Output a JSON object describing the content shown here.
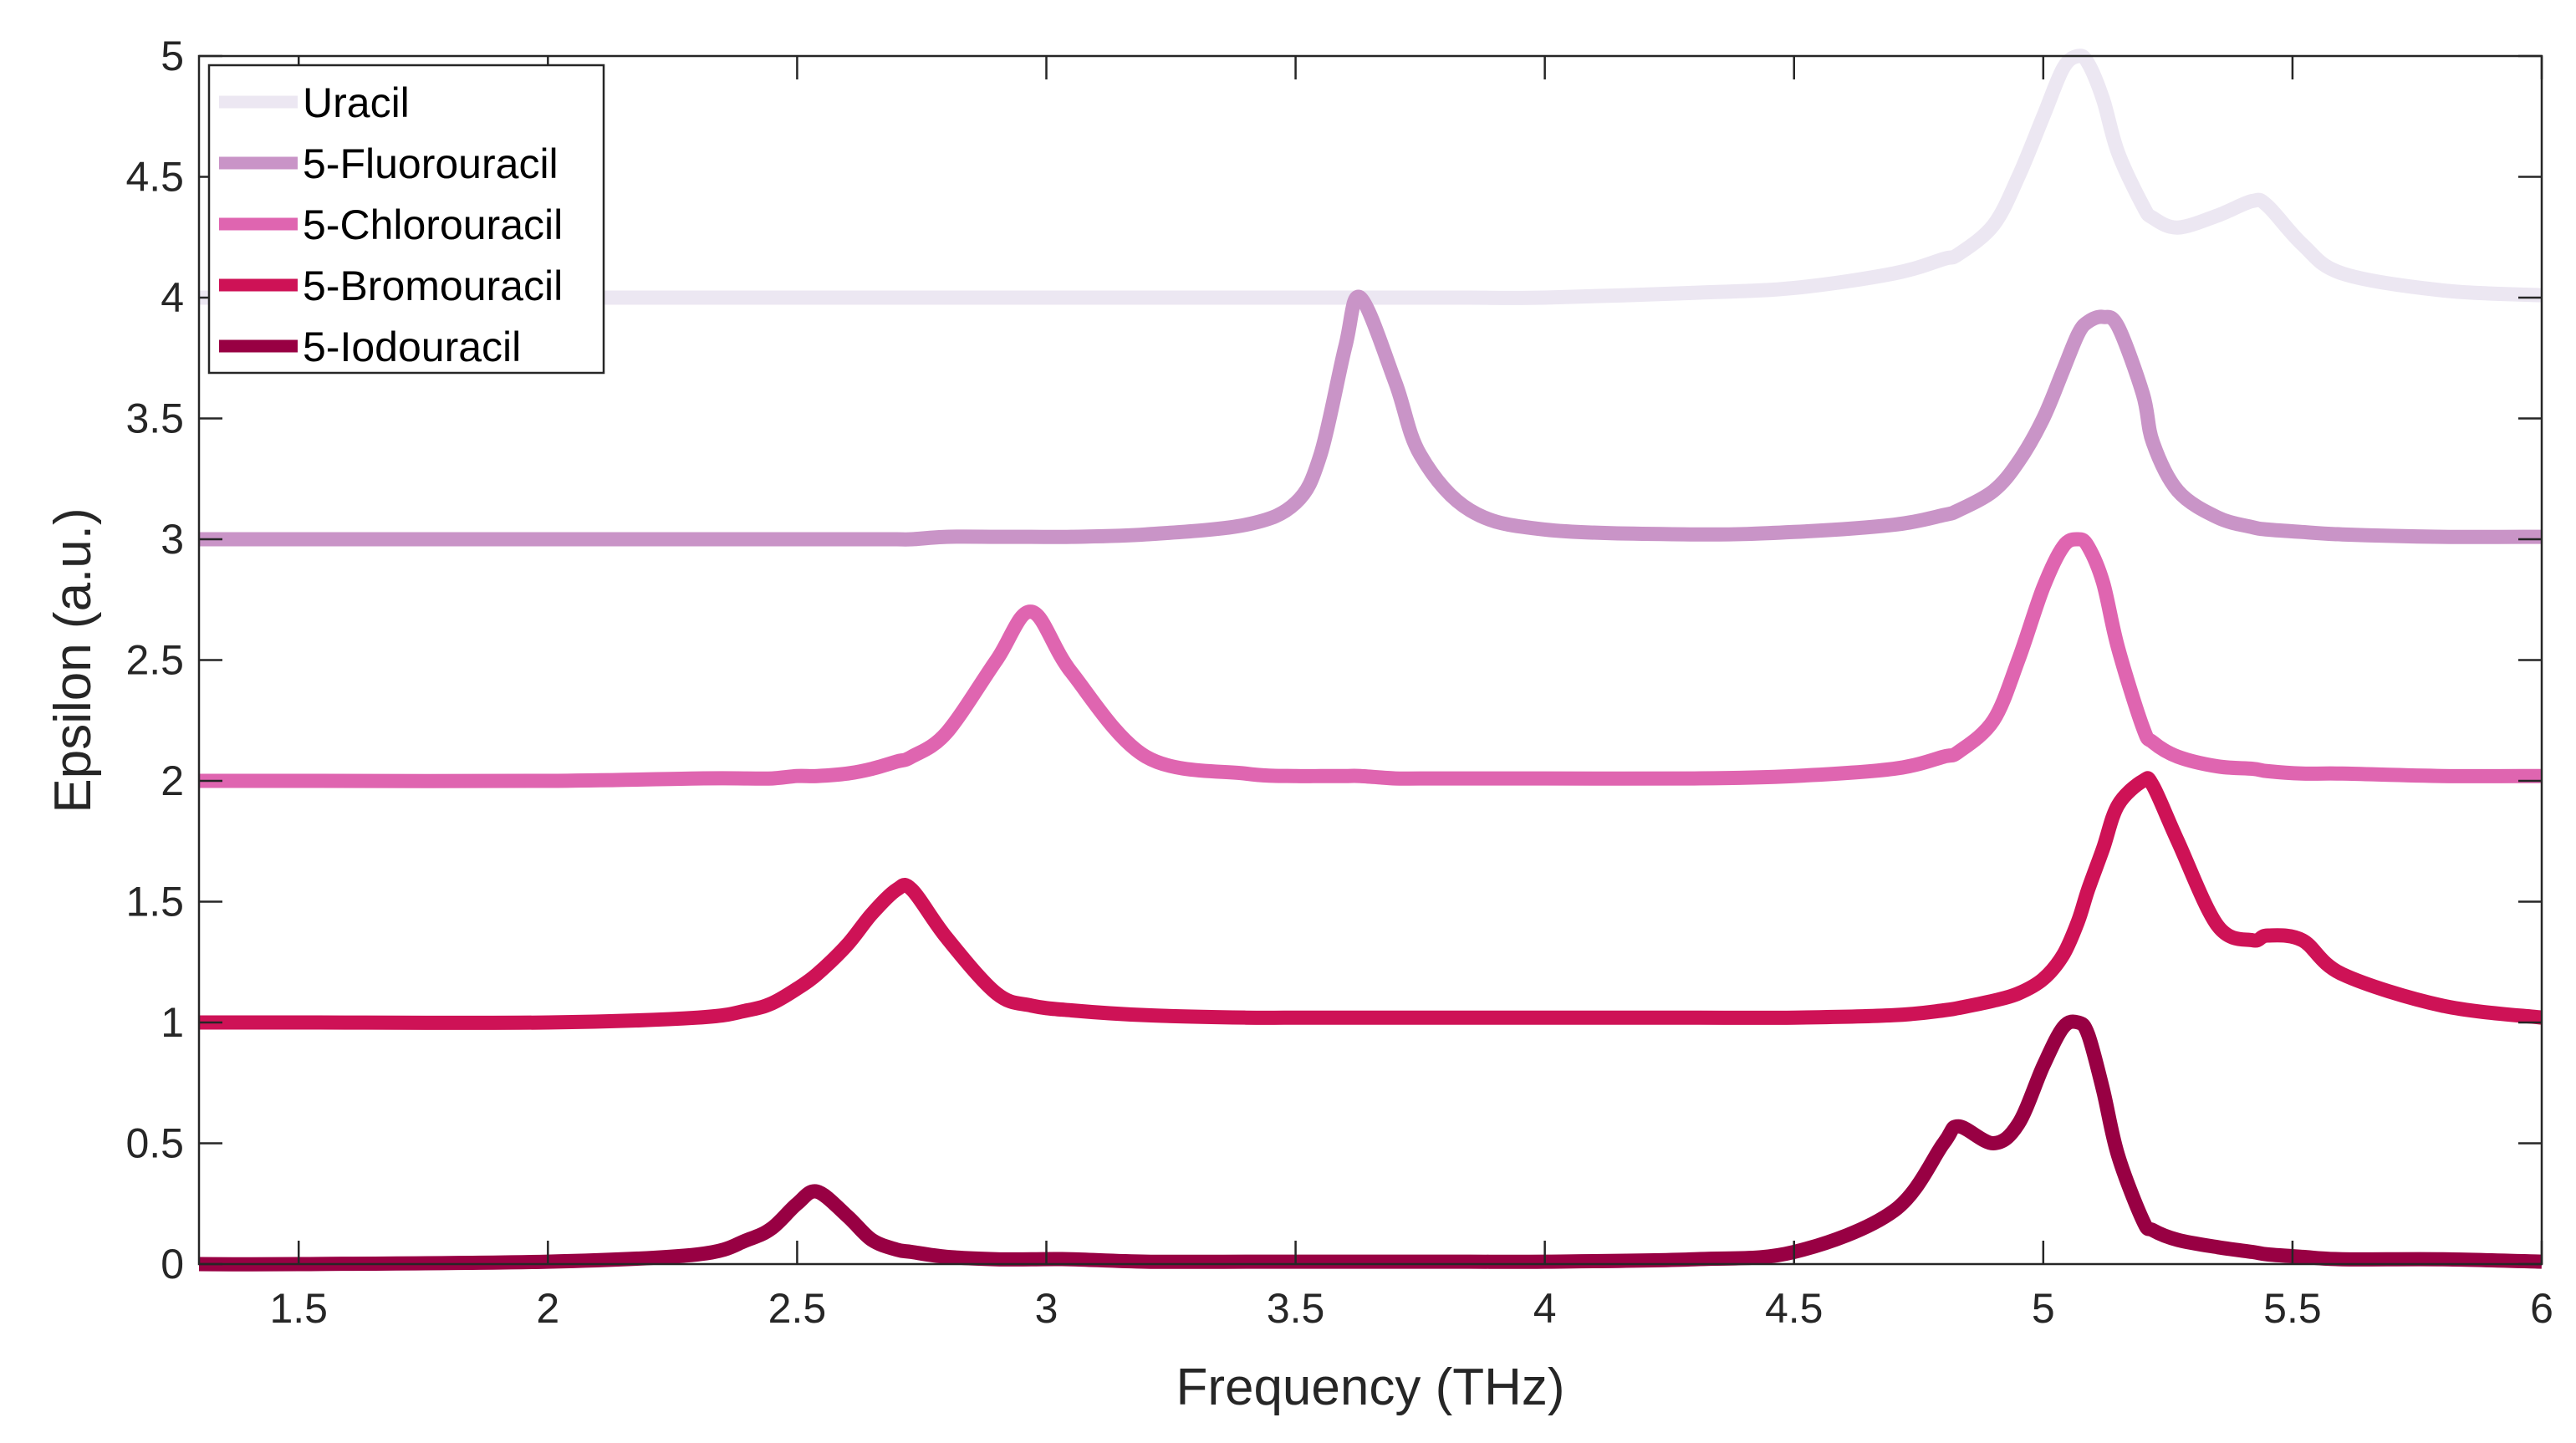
{
  "chart_data": {
    "type": "line",
    "title": "",
    "xlabel": "Frequency (THz)",
    "ylabel": "Epsilon (a.u.)",
    "xlim": [
      1.3,
      6
    ],
    "ylim": [
      0,
      5
    ],
    "grid": false,
    "legend_position": "top-left",
    "x_ticks": [
      "1.5",
      "2",
      "2.5",
      "3",
      "3.5",
      "4",
      "4.5",
      "5",
      "5.5",
      "6"
    ],
    "y_ticks": [
      "0",
      "0.5",
      "1",
      "1.5",
      "2",
      "2.5",
      "3",
      "3.5",
      "4",
      "4.5",
      "5"
    ],
    "x": [
      1.3,
      1.5,
      2.0,
      2.3,
      2.4,
      2.45,
      2.5,
      2.54,
      2.6,
      2.65,
      2.7,
      2.73,
      2.8,
      2.9,
      2.97,
      3.05,
      3.2,
      3.4,
      3.5,
      3.55,
      3.6,
      3.63,
      3.7,
      3.75,
      3.85,
      4.0,
      4.3,
      4.5,
      4.7,
      4.8,
      4.83,
      4.9,
      4.95,
      5.0,
      5.04,
      5.07,
      5.09,
      5.12,
      5.15,
      5.2,
      5.22,
      5.27,
      5.35,
      5.42,
      5.45,
      5.52,
      5.6,
      5.8,
      6.0
    ],
    "series": [
      {
        "name": "Uracil",
        "color": "#ECE7F2",
        "values": [
          4.0,
          4.0,
          4.0,
          4.0,
          4.0,
          4.0,
          4.0,
          4.0,
          4.0,
          4.0,
          4.0,
          4.0,
          4.0,
          4.0,
          4.0,
          4.0,
          4.0,
          4.0,
          4.0,
          4.0,
          4.0,
          4.0,
          4.0,
          4.0,
          4.0,
          4.0,
          4.02,
          4.04,
          4.1,
          4.16,
          4.18,
          4.3,
          4.5,
          4.75,
          4.95,
          5.0,
          4.97,
          4.82,
          4.6,
          4.38,
          4.33,
          4.29,
          4.34,
          4.4,
          4.38,
          4.22,
          4.1,
          4.03,
          4.01
        ]
      },
      {
        "name": "5-Fluorouracil",
        "color": "#C994C7",
        "values": [
          3.0,
          3.0,
          3.0,
          3.0,
          3.0,
          3.0,
          3.0,
          3.0,
          3.0,
          3.0,
          3.0,
          3.0,
          3.01,
          3.01,
          3.01,
          3.01,
          3.02,
          3.06,
          3.15,
          3.35,
          3.8,
          4.0,
          3.65,
          3.35,
          3.12,
          3.04,
          3.02,
          3.03,
          3.06,
          3.1,
          3.12,
          3.2,
          3.32,
          3.5,
          3.7,
          3.85,
          3.9,
          3.92,
          3.88,
          3.6,
          3.4,
          3.2,
          3.09,
          3.05,
          3.04,
          3.03,
          3.02,
          3.01,
          3.01
        ]
      },
      {
        "name": "5-Chlorouracil",
        "color": "#DF65B0",
        "values": [
          2.0,
          2.0,
          2.0,
          2.01,
          2.01,
          2.01,
          2.02,
          2.02,
          2.03,
          2.05,
          2.08,
          2.1,
          2.2,
          2.5,
          2.7,
          2.45,
          2.1,
          2.03,
          2.02,
          2.02,
          2.02,
          2.02,
          2.01,
          2.01,
          2.01,
          2.01,
          2.01,
          2.02,
          2.05,
          2.1,
          2.12,
          2.25,
          2.5,
          2.8,
          2.97,
          3.0,
          2.97,
          2.82,
          2.55,
          2.22,
          2.16,
          2.1,
          2.06,
          2.05,
          2.04,
          2.03,
          2.03,
          2.02,
          2.02
        ]
      },
      {
        "name": "5-Bromouracil",
        "color": "#CE1256",
        "values": [
          1.0,
          1.0,
          1.0,
          1.02,
          1.05,
          1.08,
          1.14,
          1.2,
          1.32,
          1.45,
          1.55,
          1.55,
          1.35,
          1.12,
          1.07,
          1.05,
          1.03,
          1.02,
          1.02,
          1.02,
          1.02,
          1.02,
          1.02,
          1.02,
          1.02,
          1.02,
          1.02,
          1.02,
          1.03,
          1.05,
          1.06,
          1.09,
          1.12,
          1.18,
          1.28,
          1.42,
          1.55,
          1.72,
          1.9,
          2.0,
          1.98,
          1.75,
          1.4,
          1.34,
          1.36,
          1.34,
          1.2,
          1.07,
          1.02
        ]
      },
      {
        "name": "5-Iodouracil",
        "color": "#980043",
        "values": [
          0.0,
          0.0,
          0.01,
          0.04,
          0.1,
          0.15,
          0.25,
          0.3,
          0.2,
          0.1,
          0.06,
          0.05,
          0.03,
          0.02,
          0.02,
          0.02,
          0.01,
          0.01,
          0.01,
          0.01,
          0.01,
          0.01,
          0.01,
          0.01,
          0.01,
          0.01,
          0.02,
          0.05,
          0.22,
          0.5,
          0.57,
          0.5,
          0.58,
          0.82,
          0.98,
          1.0,
          0.95,
          0.72,
          0.45,
          0.18,
          0.14,
          0.1,
          0.07,
          0.05,
          0.04,
          0.03,
          0.02,
          0.02,
          0.01
        ]
      }
    ]
  }
}
